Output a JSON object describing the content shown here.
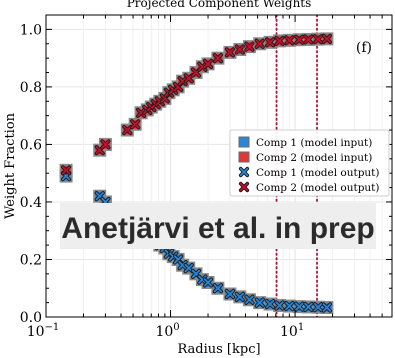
{
  "chart_data": {
    "type": "scatter",
    "title": "Projected Component Weights",
    "panel_label": "(f)",
    "xlabel": "Radius [kpc]",
    "ylabel": "Weight Fraction",
    "xscale": "log",
    "xlim": [
      0.1,
      60
    ],
    "ylim": [
      0.0,
      1.05
    ],
    "x_ticks": [
      {
        "value": 0.1,
        "base": "10",
        "exp": "−1"
      },
      {
        "value": 1,
        "base": "10",
        "exp": "0"
      },
      {
        "value": 10,
        "base": "10",
        "exp": "1"
      }
    ],
    "y_ticks": [
      {
        "value": 0.0,
        "label": "0.0"
      },
      {
        "value": 0.2,
        "label": "0.2"
      },
      {
        "value": 0.4,
        "label": "0.4"
      },
      {
        "value": 0.6,
        "label": "0.6"
      },
      {
        "value": 0.8,
        "label": "0.8"
      },
      {
        "value": 1.0,
        "label": "1.0"
      }
    ],
    "grid": true,
    "vlines": [
      7.1,
      15.0
    ],
    "x": [
      0.145,
      0.27,
      0.3,
      0.45,
      0.52,
      0.58,
      0.65,
      0.7,
      0.76,
      0.82,
      0.9,
      0.97,
      1.05,
      1.15,
      1.25,
      1.4,
      1.6,
      1.8,
      2.0,
      2.4,
      3.0,
      3.6,
      4.3,
      5.2,
      6.3,
      7.5,
      9.0,
      10.8,
      12.8,
      15.3,
      18.0
    ],
    "series": [
      {
        "name": "Comp 1 (model input)",
        "role": "comp1-input",
        "marker": "square",
        "color": "#2b86d6",
        "values": [
          0.49,
          0.42,
          0.4,
          0.35,
          0.33,
          0.29,
          0.28,
          0.27,
          0.26,
          0.25,
          0.24,
          0.22,
          0.21,
          0.2,
          0.18,
          0.17,
          0.15,
          0.13,
          0.12,
          0.1,
          0.08,
          0.07,
          0.06,
          0.05,
          0.045,
          0.04,
          0.038,
          0.036,
          0.035,
          0.034,
          0.033
        ]
      },
      {
        "name": "Comp 2 (model input)",
        "role": "comp2-input",
        "marker": "square",
        "color": "#d93a3a",
        "values": [
          0.51,
          0.58,
          0.6,
          0.65,
          0.67,
          0.71,
          0.72,
          0.73,
          0.74,
          0.75,
          0.76,
          0.78,
          0.79,
          0.8,
          0.82,
          0.83,
          0.85,
          0.87,
          0.88,
          0.9,
          0.92,
          0.93,
          0.94,
          0.95,
          0.955,
          0.96,
          0.962,
          0.964,
          0.965,
          0.966,
          0.967
        ]
      },
      {
        "name": "Comp 1 (model output)",
        "role": "comp1-output",
        "marker": "x",
        "color": "#2b86d6",
        "values": [
          0.49,
          0.42,
          0.4,
          0.35,
          0.33,
          0.29,
          0.28,
          0.27,
          0.26,
          0.25,
          0.24,
          0.22,
          0.21,
          0.2,
          0.18,
          0.17,
          0.15,
          0.13,
          0.12,
          0.1,
          0.08,
          0.07,
          0.06,
          0.05,
          0.045,
          0.04,
          0.038,
          0.036,
          0.035,
          0.034,
          0.033
        ]
      },
      {
        "name": "Comp 2 (model output)",
        "role": "comp2-output",
        "marker": "x",
        "color": "#c8102e",
        "values": [
          0.51,
          0.58,
          0.6,
          0.65,
          0.67,
          0.71,
          0.72,
          0.73,
          0.74,
          0.75,
          0.76,
          0.78,
          0.79,
          0.8,
          0.82,
          0.83,
          0.85,
          0.87,
          0.88,
          0.9,
          0.92,
          0.93,
          0.94,
          0.95,
          0.955,
          0.96,
          0.962,
          0.964,
          0.965,
          0.966,
          0.967
        ]
      }
    ],
    "legend_position": "center-right",
    "watermark": "Anetjärvi et al. in prep"
  },
  "colors": {
    "comp1": "#2b86d6",
    "comp2": "#d93a3a",
    "marker_edge": "#8a8a8a",
    "vline": "#a0173a",
    "watermark_bg": "#eeeeee"
  }
}
